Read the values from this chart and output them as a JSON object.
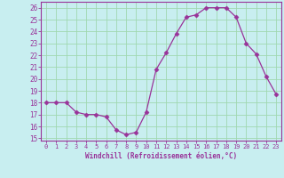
{
  "x": [
    0,
    1,
    2,
    3,
    4,
    5,
    6,
    7,
    8,
    9,
    10,
    11,
    12,
    13,
    14,
    15,
    16,
    17,
    18,
    19,
    20,
    21,
    22,
    23
  ],
  "y": [
    18,
    18,
    18,
    17.2,
    17,
    17,
    16.8,
    15.7,
    15.3,
    15.5,
    17.2,
    20.8,
    22.2,
    23.8,
    25.2,
    25.4,
    26.0,
    26.0,
    26.0,
    25.2,
    23.0,
    22.1,
    20.2,
    18.7
  ],
  "line_color": "#993399",
  "marker": "D",
  "marker_size": 2.5,
  "bg_color": "#c8eef0",
  "grid_color": "#a0d8b0",
  "xlabel": "Windchill (Refroidissement éolien,°C)",
  "tick_color": "#993399",
  "ylim": [
    14.8,
    26.5
  ],
  "xlim": [
    -0.5,
    23.5
  ],
  "yticks": [
    15,
    16,
    17,
    18,
    19,
    20,
    21,
    22,
    23,
    24,
    25,
    26
  ],
  "xticks": [
    0,
    1,
    2,
    3,
    4,
    5,
    6,
    7,
    8,
    9,
    10,
    11,
    12,
    13,
    14,
    15,
    16,
    17,
    18,
    19,
    20,
    21,
    22,
    23
  ]
}
